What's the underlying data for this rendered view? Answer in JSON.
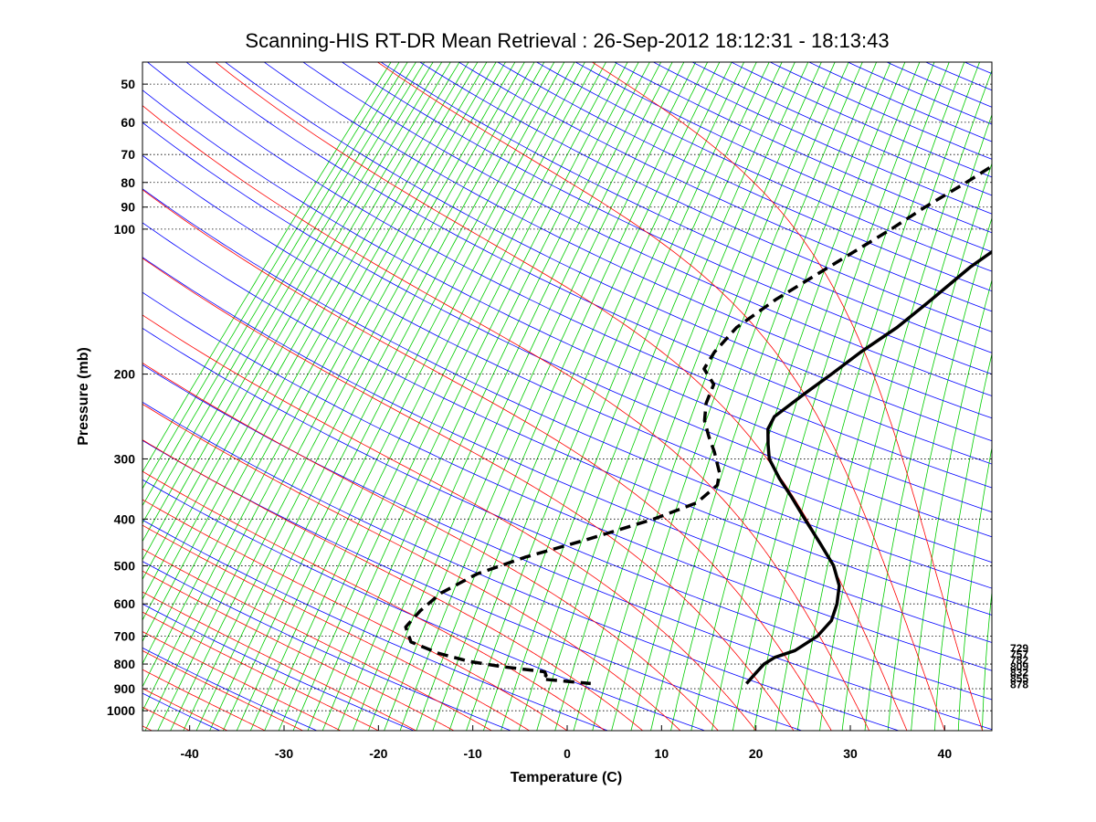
{
  "chart_data": {
    "type": "line",
    "diagram": "skew-T log-P",
    "title": "Scanning-HIS RT-DR Mean Retrieval : 26-Sep-2012 18:12:31 - 18:13:43",
    "xlabel": "Temperature (C)",
    "ylabel": "Pressure (mb)",
    "xlim": [
      -45,
      45
    ],
    "ylim": [
      1100,
      45
    ],
    "x_ticks": [
      -40,
      -30,
      -20,
      -10,
      0,
      10,
      20,
      30,
      40
    ],
    "y_ticks": [
      50,
      60,
      70,
      80,
      90,
      100,
      200,
      300,
      400,
      500,
      600,
      700,
      800,
      900,
      1000
    ],
    "grid": "horizontal dotted at pressure ticks",
    "background_lines": {
      "dry_adiabats": {
        "color": "#0000ff"
      },
      "moist_adiabats": {
        "color": "#ff0000"
      },
      "mixing_ratio": {
        "color": "#00cc00"
      }
    },
    "side_labels": [
      "729",
      "757",
      "782",
      "809",
      "832",
      "855",
      "878"
    ],
    "series": [
      {
        "name": "Temperature",
        "style": "solid",
        "color": "#000000",
        "points": [
          {
            "p": 45,
            "t": 28
          },
          {
            "p": 50,
            "t": 20
          },
          {
            "p": 55,
            "t": 15.5
          },
          {
            "p": 60,
            "t": 11.5
          },
          {
            "p": 65,
            "t": 9
          },
          {
            "p": 70,
            "t": 7
          },
          {
            "p": 80,
            "t": 4
          },
          {
            "p": 90,
            "t": 2
          },
          {
            "p": 100,
            "t": 0.5
          },
          {
            "p": 110,
            "t": -0.5
          },
          {
            "p": 120,
            "t": -1.5
          },
          {
            "p": 140,
            "t": -2.5
          },
          {
            "p": 160,
            "t": -3.5
          },
          {
            "p": 180,
            "t": -5
          },
          {
            "p": 200,
            "t": -6
          },
          {
            "p": 220,
            "t": -7
          },
          {
            "p": 245,
            "t": -8
          },
          {
            "p": 260,
            "t": -7.5
          },
          {
            "p": 280,
            "t": -6
          },
          {
            "p": 300,
            "t": -4.5
          },
          {
            "p": 330,
            "t": -1.5
          },
          {
            "p": 360,
            "t": 1.5
          },
          {
            "p": 400,
            "t": 5
          },
          {
            "p": 450,
            "t": 9
          },
          {
            "p": 500,
            "t": 12.5
          },
          {
            "p": 550,
            "t": 15
          },
          {
            "p": 600,
            "t": 16.5
          },
          {
            "p": 650,
            "t": 17.5
          },
          {
            "p": 700,
            "t": 17.5
          },
          {
            "p": 750,
            "t": 16.5
          },
          {
            "p": 775,
            "t": 15
          },
          {
            "p": 800,
            "t": 14.5
          },
          {
            "p": 840,
            "t": 14.5
          },
          {
            "p": 878,
            "t": 14.5
          }
        ]
      },
      {
        "name": "Dewpoint",
        "style": "dashed",
        "color": "#000000",
        "points": [
          {
            "p": 45,
            "t": 0
          },
          {
            "p": 50,
            "t": -1.5
          },
          {
            "p": 55,
            "t": -3.5
          },
          {
            "p": 60,
            "t": -5.5
          },
          {
            "p": 70,
            "t": -8
          },
          {
            "p": 80,
            "t": -10
          },
          {
            "p": 90,
            "t": -12
          },
          {
            "p": 100,
            "t": -13.5
          },
          {
            "p": 120,
            "t": -16.5
          },
          {
            "p": 140,
            "t": -19
          },
          {
            "p": 160,
            "t": -20.5
          },
          {
            "p": 180,
            "t": -20.5
          },
          {
            "p": 195,
            "t": -20
          },
          {
            "p": 210,
            "t": -17.5
          },
          {
            "p": 230,
            "t": -16.5
          },
          {
            "p": 250,
            "t": -15
          },
          {
            "p": 270,
            "t": -13
          },
          {
            "p": 290,
            "t": -11
          },
          {
            "p": 320,
            "t": -8.5
          },
          {
            "p": 340,
            "t": -7.5
          },
          {
            "p": 370,
            "t": -8
          },
          {
            "p": 400,
            "t": -11
          },
          {
            "p": 440,
            "t": -16
          },
          {
            "p": 480,
            "t": -21
          },
          {
            "p": 520,
            "t": -24.5
          },
          {
            "p": 570,
            "t": -26.5
          },
          {
            "p": 620,
            "t": -27
          },
          {
            "p": 670,
            "t": -27
          },
          {
            "p": 720,
            "t": -25
          },
          {
            "p": 760,
            "t": -21
          },
          {
            "p": 790,
            "t": -17
          },
          {
            "p": 810,
            "t": -13
          },
          {
            "p": 830,
            "t": -8
          },
          {
            "p": 845,
            "t": -7.5
          },
          {
            "p": 860,
            "t": -7.5
          },
          {
            "p": 878,
            "t": -2
          }
        ]
      }
    ]
  }
}
